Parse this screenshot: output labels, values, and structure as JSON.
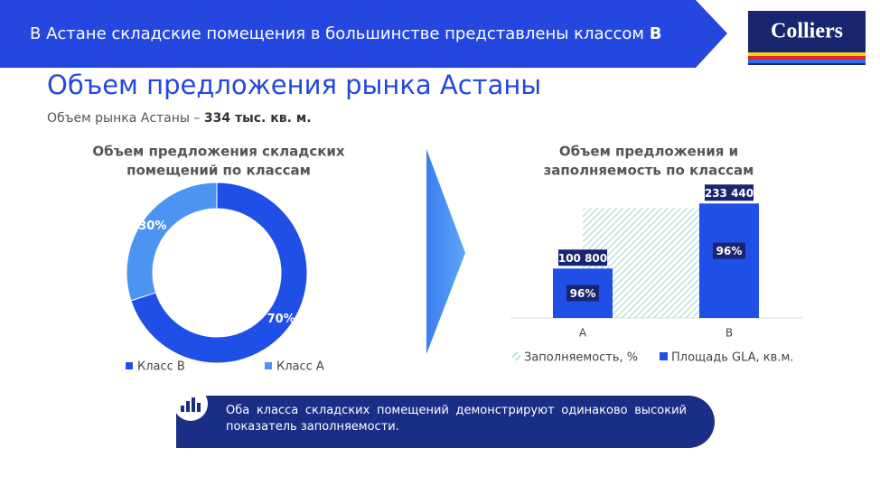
{
  "header": {
    "text": "В Астане складские помещения в большинстве представлены классом",
    "highlight": "B"
  },
  "logo": "Colliers",
  "title": "Объем предложения рынка Астаны",
  "subtitle": {
    "text": "Объем рынка Астаны –",
    "highlight": "334 тыс. кв. м."
  },
  "note": "Оба класса складских помещений демонстрируют одинаково высокий показатель заполняемости.",
  "chart_data": [
    {
      "type": "pie",
      "donut": true,
      "title": [
        "Объем предложения складских",
        "помещений по классам"
      ],
      "categories": [
        "Класс B",
        "Класс A"
      ],
      "values": [
        70,
        30
      ],
      "value_labels": [
        "70%",
        "30%"
      ],
      "colors": [
        "#1f4fe6",
        "#4d94f2"
      ],
      "legend": "bottom"
    },
    {
      "type": "bar",
      "title": [
        "Объем предложения и",
        "заполняемость по классам"
      ],
      "categories": [
        "A",
        "B"
      ],
      "series": [
        {
          "name": "Заполняемость, %",
          "type": "area",
          "color": "#9fd0c8",
          "axis": "y2",
          "values": [
            96,
            96
          ],
          "value_labels": [
            "96%",
            "96%"
          ]
        },
        {
          "name": "Площадь GLA, кв.м.",
          "type": "bar",
          "color": "#1f4fe6",
          "values": [
            100800,
            233440
          ],
          "value_labels": [
            "100 800",
            "233 440"
          ]
        }
      ],
      "ylim": [
        0,
        280000
      ],
      "y2lim": [
        0,
        120
      ],
      "legend": "bottom"
    }
  ]
}
